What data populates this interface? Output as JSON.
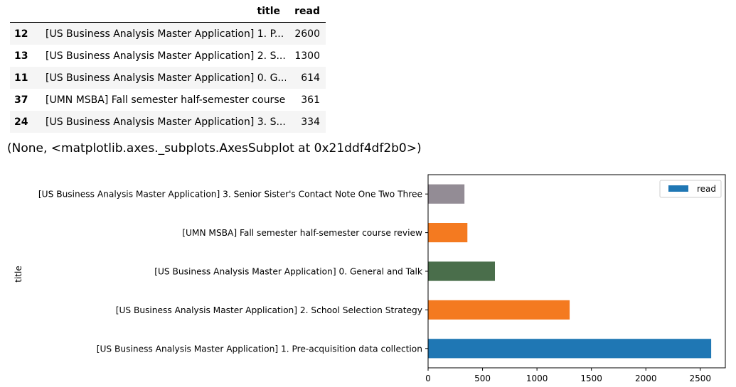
{
  "dataframe": {
    "columns": [
      "title",
      "read"
    ],
    "rows": [
      {
        "index": "12",
        "title": "[US Business Analysis Master Application] 1. P...",
        "read": "2600"
      },
      {
        "index": "13",
        "title": "[US Business Analysis Master Application] 2. S...",
        "read": "1300"
      },
      {
        "index": "11",
        "title": "[US Business Analysis Master Application] 0. G...",
        "read": "614"
      },
      {
        "index": "37",
        "title": "[UMN MSBA] Fall semester half-semester course ...",
        "read": "361"
      },
      {
        "index": "24",
        "title": "[US Business Analysis Master Application] 3. S...",
        "read": "334"
      }
    ]
  },
  "output_text": "(None, <matplotlib.axes._subplots.AxesSubplot at 0x21ddf4df2b0>)",
  "chart_data": {
    "type": "bar",
    "orientation": "horizontal",
    "categories": [
      "[US Business Analysis Master Application] 1. Pre-acquisition data collection",
      "[US Business Analysis Master Application] 2. School Selection Strategy",
      "[US Business Analysis Master Application] 0. General and Talk",
      "[UMN MSBA] Fall semester half-semester course review",
      "[US Business Analysis Master Application] 3. Senior Sister's Contact Note One Two Three"
    ],
    "series": [
      {
        "name": "read",
        "values": [
          2600,
          1300,
          614,
          361,
          334
        ]
      }
    ],
    "bar_colors": [
      "#1f77b4",
      "#f47a20",
      "#4a6e4b",
      "#f47a20",
      "#938c95"
    ],
    "ylabel": "title",
    "xlabel": "",
    "xlim": [
      0,
      2730
    ],
    "xticks": [
      0,
      500,
      1000,
      1500,
      2000,
      2500
    ],
    "legend_position": "upper right",
    "grid": false
  }
}
